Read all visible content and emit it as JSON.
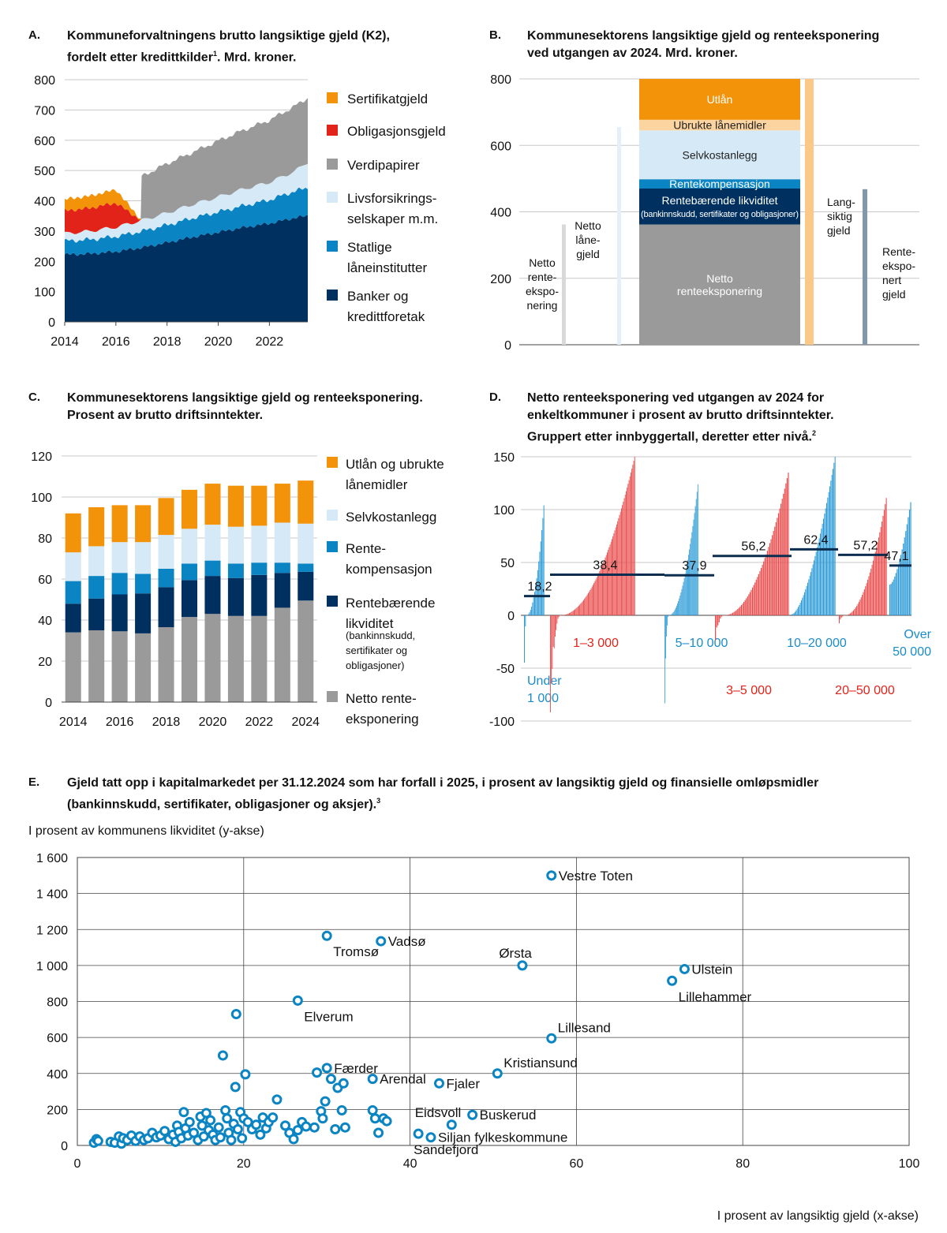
{
  "panels": {
    "a": {
      "letter": "A.",
      "title_l1": "Kommuneforvaltningens brutto langsiktige gjeld (K2),",
      "title_l2": "fordelt etter kredittkilder",
      "title_sup": "1",
      "title_end": ". Mrd. kroner."
    },
    "b": {
      "letter": "B.",
      "title_l1": "Kommunesektorens langsiktige gjeld og renteeksponering",
      "title_l2": "ved utgangen av 2024. Mrd. kroner."
    },
    "c": {
      "letter": "C.",
      "title_l1": "Kommunesektorens langsiktige gjeld og renteeksponering.",
      "title_l2": "Prosent av brutto driftsinntekter."
    },
    "d": {
      "letter": "D.",
      "title_l1": "Netto renteeksponering ved utgangen av 2024 for",
      "title_l2": "enkeltkommuner i prosent av brutto driftsinntekter.",
      "title_l3": "Gruppert etter innbyggertall, deretter etter nivå.",
      "title_sup": "2"
    },
    "e": {
      "letter": "E.",
      "title_l1": "Gjeld tatt opp i kapitalmarkedet per 31.12.2024 som har forfall i 2025, i prosent av langsiktig gjeld og finansielle omløpsmidler",
      "title_l2": "(bankinnskudd, sertifikater, obligasjoner og aksjer).",
      "title_sup": "3",
      "ylabel": "I prosent av kommunens likviditet (y-akse)",
      "xlabel": "I prosent av langsiktig gjeld (x-akse)"
    }
  },
  "colors": {
    "navy": "#00305f",
    "blue": "#0a84c3",
    "lightblue": "#d6e9f7",
    "grey": "#9a9a9a",
    "red": "#e2231a",
    "orange": "#f2930a",
    "peach": "#fcd49f",
    "redbar": "#e94b4b",
    "bluebar": "#2b9bd8"
  },
  "chart_data": [
    {
      "id": "A",
      "type": "area",
      "x_ticks": [
        "2014",
        "2016",
        "2018",
        "2020",
        "2022"
      ],
      "x_range": [
        2014,
        2023.5
      ],
      "y_ticks": [
        "0",
        "100",
        "200",
        "300",
        "400",
        "500",
        "600",
        "700",
        "800"
      ],
      "ylim": [
        0,
        800
      ],
      "years": [
        2014,
        2015,
        2016,
        2017,
        2018,
        2019,
        2020,
        2021,
        2022,
        2023,
        2023.5
      ],
      "series": [
        {
          "name": "Banker og kredittforetak",
          "color": "#00305f",
          "values": [
            222,
            225,
            232,
            245,
            262,
            280,
            296,
            312,
            325,
            344,
            350
          ]
        },
        {
          "name": "Statlige låneinstitutter",
          "color": "#0a84c3",
          "values": [
            45,
            47,
            50,
            54,
            58,
            63,
            67,
            72,
            78,
            88,
            93
          ]
        },
        {
          "name": "Livsforsikringsselskaper m.m.",
          "color": "#d6e9f7",
          "values": [
            25,
            28,
            31,
            36,
            40,
            45,
            50,
            55,
            58,
            66,
            85
          ]
        },
        {
          "name": "Verdipapirer",
          "color": "#9a9a9a",
          "values": [
            0,
            0,
            0,
            145,
            163,
            172,
            185,
            195,
            205,
            215,
            212
          ]
        },
        {
          "name": "Obligasjonsgjeld",
          "color": "#e2231a",
          "values": [
            75,
            76,
            80,
            0,
            0,
            0,
            0,
            0,
            0,
            0,
            0
          ]
        },
        {
          "name": "Sertifikatgjeld",
          "color": "#f2930a",
          "values": [
            38,
            40,
            44,
            0,
            0,
            0,
            0,
            0,
            0,
            0,
            0
          ]
        }
      ],
      "legend": [
        {
          "name": "Sertifikatgjeld",
          "color": "#f2930a"
        },
        {
          "name": "Obligasjonsgjeld",
          "color": "#e2231a"
        },
        {
          "name": "Verdipapirer",
          "color": "#9a9a9a"
        },
        {
          "name": "Livsforsikrings-",
          "name2": "selskaper m.m.",
          "color": "#d6e9f7"
        },
        {
          "name": "Statlige",
          "name2": "låneinstitutter",
          "color": "#0a84c3"
        },
        {
          "name": "Banker og",
          "name2": "kredittforetak",
          "color": "#00305f"
        }
      ]
    },
    {
      "id": "B",
      "type": "bar",
      "y_ticks": [
        "0",
        "200",
        "400",
        "600",
        "800"
      ],
      "ylim": [
        0,
        800
      ],
      "stack": [
        {
          "name": "Netto renteeksponering",
          "label": [
            "Netto",
            "renteeksponering"
          ],
          "color": "#9a9a9a",
          "from": 0,
          "to": 362
        },
        {
          "name": "Rentebærende likviditet",
          "label": [
            "Rentebærende likviditet",
            "(bankinnskudd, sertifikater og obligasjoner)"
          ],
          "color": "#00305f",
          "from": 362,
          "to": 470
        },
        {
          "name": "Rentekompensasjon",
          "label": [
            "Rentekompensasjon"
          ],
          "color": "#0a84c3",
          "from": 470,
          "to": 498
        },
        {
          "name": "Selvkostanlegg",
          "label": [
            "Selvkostanlegg"
          ],
          "color": "#d6e9f7",
          "from": 498,
          "to": 645
        },
        {
          "name": "Ubrukte lånemidler",
          "label": [
            "Ubrukte lånemidler"
          ],
          "color": "#fcd49f",
          "from": 645,
          "to": 677
        },
        {
          "name": "Utlån",
          "label": [
            "Utlån"
          ],
          "color": "#f2930a",
          "from": 677,
          "to": 800
        }
      ],
      "thin_bars": [
        {
          "name": "Netto renteeksponering",
          "label": [
            "Netto",
            "rente-",
            "ekspo-",
            "nering"
          ],
          "color": "#d9d9d9",
          "value": 362
        },
        {
          "name": "Netto lånegjeld",
          "label": [
            "Netto",
            "låne-",
            "gjeld"
          ],
          "color": "#e3f0fa",
          "value": 655
        },
        {
          "name": "Utlån og ubrukte lånemidler",
          "label": [],
          "color": "#fcc887",
          "value": 800
        },
        {
          "name": "Langsiktig gjeld",
          "label": [
            "Lang-",
            "siktig",
            "gjeld"
          ],
          "color": "#ffffff",
          "value": 0
        },
        {
          "name": "Renteeksponert gjeld",
          "label": [
            "Rente-",
            "ekspo-",
            "nert",
            "gjeld"
          ],
          "color": "#7f98ad",
          "value": 468
        }
      ]
    },
    {
      "id": "C",
      "type": "bar",
      "categories": [
        "2014",
        "2015",
        "2016",
        "2017",
        "2018",
        "2019",
        "2020",
        "2021",
        "2022",
        "2023",
        "2024"
      ],
      "x_ticks": [
        "2014",
        "2016",
        "2018",
        "2020",
        "2022",
        "2024"
      ],
      "y_ticks": [
        "0",
        "20",
        "40",
        "60",
        "80",
        "100",
        "120"
      ],
      "ylim": [
        0,
        120
      ],
      "series": [
        {
          "name": "Netto renteeksponering",
          "color": "#9a9a9a",
          "values": [
            34,
            35,
            34.5,
            33.5,
            36.5,
            41.5,
            43,
            42,
            42,
            46,
            49.5
          ]
        },
        {
          "name": "Rentebærende likviditet",
          "color": "#00305f",
          "values": [
            14,
            15.5,
            18,
            19.5,
            19.5,
            18,
            18.5,
            18.5,
            20,
            17,
            14
          ]
        },
        {
          "name": "Rentekompensasjon",
          "color": "#0a84c3",
          "values": [
            11,
            11,
            10.5,
            9.5,
            9,
            8,
            7.5,
            7,
            6,
            5,
            4
          ]
        },
        {
          "name": "Selvkostanlegg",
          "color": "#d6e9f7",
          "values": [
            14,
            14.5,
            15,
            15.5,
            16.5,
            17,
            17.5,
            18,
            18,
            19.5,
            19.5
          ]
        },
        {
          "name": "Utlån og ubrukte lånemidler",
          "color": "#f2930a",
          "values": [
            19,
            19,
            18,
            18,
            18,
            19,
            20,
            20,
            19.5,
            19,
            21
          ]
        }
      ],
      "legend": [
        {
          "lines": [
            "Utlån og ubrukte",
            "lånemidler"
          ],
          "small": [],
          "color": "#f2930a"
        },
        {
          "lines": [
            "Selvkostanlegg"
          ],
          "small": [],
          "color": "#d6e9f7"
        },
        {
          "lines": [
            "Rente-",
            "kompensasjon"
          ],
          "small": [],
          "color": "#0a84c3"
        },
        {
          "lines": [
            "Rentebærende",
            "likviditet"
          ],
          "small": [
            "(bankinnskudd,",
            "sertifikater og",
            "obligasjoner)"
          ],
          "color": "#00305f"
        },
        {
          "lines": [
            "Netto rente-",
            "eksponering"
          ],
          "small": [],
          "color": "#9a9a9a"
        }
      ]
    },
    {
      "id": "D",
      "type": "bar",
      "y_ticks": [
        "-100",
        "-50",
        "0",
        "50",
        "100",
        "150"
      ],
      "ylim": [
        -100,
        150
      ],
      "groups": [
        {
          "name": "Under 1 000",
          "label": [
            "Under",
            "1 000"
          ],
          "color": "#2b9bd8",
          "count": 20,
          "min": -52,
          "max": 104,
          "mean": 18.2,
          "mean_label": "18,2"
        },
        {
          "name": "1–3 000",
          "label": [
            "1–3 000"
          ],
          "color": "#e94b4b",
          "count": 90,
          "min": -92,
          "max": 150,
          "mean": 38.4,
          "mean_label": "38,4"
        },
        {
          "name": "5–10 000",
          "label": [
            "5–10 000"
          ],
          "color": "#2b9bd8",
          "count": 40,
          "min": -100,
          "max": 124,
          "mean": 37.9,
          "mean_label": "37,9"
        },
        {
          "name": "3–5 000",
          "label": [
            "3–5 000"
          ],
          "color": "#e94b4b",
          "count": 60,
          "min": -25,
          "max": 135,
          "mean": 56.2,
          "mean_label": "56,2"
        },
        {
          "name": "10–20 000",
          "label": [
            "10–20 000"
          ],
          "color": "#2b9bd8",
          "count": 42,
          "min": 1,
          "max": 150,
          "mean": 62.4,
          "mean_label": "62,4"
        },
        {
          "name": "20–50 000",
          "label": [
            "20–50 000"
          ],
          "color": "#e94b4b",
          "count": 44,
          "min": -8,
          "max": 111,
          "mean": 57.2,
          "mean_label": "57,2"
        },
        {
          "name": "Over 50 000",
          "label": [
            "Over",
            "50 000"
          ],
          "color": "#2b9bd8",
          "count": 18,
          "min": 29,
          "max": 107,
          "mean": 47.1,
          "mean_label": "47,1"
        }
      ]
    },
    {
      "id": "E",
      "type": "scatter",
      "x_ticks": [
        "0",
        "20",
        "40",
        "60",
        "80",
        "100"
      ],
      "y_ticks": [
        "0",
        "200",
        "400",
        "600",
        "800",
        "1 000",
        "1 200",
        "1 400",
        "1 600"
      ],
      "xlim": [
        0,
        100
      ],
      "ylim": [
        0,
        1600
      ],
      "labeled_points": [
        {
          "label": "Vestre Toten",
          "x": 57,
          "y": 1500,
          "lpos": "r"
        },
        {
          "label": "Tromsø",
          "x": 30,
          "y": 1165,
          "lpos": "br"
        },
        {
          "label": "Vadsø",
          "x": 36.5,
          "y": 1135,
          "lpos": "r"
        },
        {
          "label": "Ørsta",
          "x": 53.5,
          "y": 1000,
          "lpos": "tl"
        },
        {
          "label": "Ulstein",
          "x": 73,
          "y": 980,
          "lpos": "r"
        },
        {
          "label": "Lillehammer",
          "x": 71.5,
          "y": 915,
          "lpos": "br"
        },
        {
          "label": "Elverum",
          "x": 26.5,
          "y": 805,
          "lpos": "br"
        },
        {
          "label": "Lillesand",
          "x": 57,
          "y": 595,
          "lpos": "tr"
        },
        {
          "label": "Færder",
          "x": 30,
          "y": 430,
          "lpos": "r"
        },
        {
          "label": "Kristiansund",
          "x": 50.5,
          "y": 400,
          "lpos": "tr"
        },
        {
          "label": "Arendal",
          "x": 35.5,
          "y": 370,
          "lpos": "r"
        },
        {
          "label": "Fjaler",
          "x": 43.5,
          "y": 345,
          "lpos": "r"
        },
        {
          "label": "Eidsvoll",
          "x": 45,
          "y": 115,
          "lpos": "tl"
        },
        {
          "label": "Buskerud",
          "x": 47.5,
          "y": 170,
          "lpos": "r"
        },
        {
          "label": "Siljan fylkeskommune",
          "x": 42.5,
          "y": 45,
          "lpos": "r"
        },
        {
          "label": "Sandefjord",
          "x": 41,
          "y": 65,
          "lpos": "b"
        }
      ],
      "points": [
        [
          2,
          15
        ],
        [
          2.3,
          35
        ],
        [
          2.5,
          25
        ],
        [
          4,
          20
        ],
        [
          4.5,
          15
        ],
        [
          5,
          50
        ],
        [
          5.3,
          10
        ],
        [
          5.5,
          40
        ],
        [
          6,
          30
        ],
        [
          6.5,
          55
        ],
        [
          7,
          25
        ],
        [
          7.5,
          50
        ],
        [
          8,
          30
        ],
        [
          8.5,
          40
        ],
        [
          9,
          70
        ],
        [
          9.5,
          45
        ],
        [
          10,
          55
        ],
        [
          10.5,
          80
        ],
        [
          11,
          35
        ],
        [
          11.5,
          60
        ],
        [
          11.8,
          20
        ],
        [
          12,
          110
        ],
        [
          12.2,
          75
        ],
        [
          12.5,
          40
        ],
        [
          12.8,
          185
        ],
        [
          13,
          95
        ],
        [
          13.3,
          55
        ],
        [
          13.5,
          130
        ],
        [
          14,
          70
        ],
        [
          14.5,
          30
        ],
        [
          14.8,
          160
        ],
        [
          15,
          110
        ],
        [
          15.2,
          50
        ],
        [
          15.5,
          180
        ],
        [
          15.8,
          85
        ],
        [
          16,
          140
        ],
        [
          16.3,
          60
        ],
        [
          16.6,
          30
        ],
        [
          17,
          100
        ],
        [
          17.2,
          45
        ],
        [
          17.5,
          500
        ],
        [
          17.8,
          195
        ],
        [
          18,
          150
        ],
        [
          18.2,
          70
        ],
        [
          18.5,
          30
        ],
        [
          18.8,
          120
        ],
        [
          19,
          325
        ],
        [
          19.1,
          730
        ],
        [
          19.3,
          90
        ],
        [
          19.6,
          185
        ],
        [
          19.8,
          40
        ],
        [
          20,
          150
        ],
        [
          20.2,
          395
        ],
        [
          20.5,
          130
        ],
        [
          21,
          90
        ],
        [
          21.5,
          115
        ],
        [
          22,
          60
        ],
        [
          22.3,
          155
        ],
        [
          22.7,
          95
        ],
        [
          23,
          130
        ],
        [
          23.5,
          155
        ],
        [
          24,
          255
        ],
        [
          25,
          110
        ],
        [
          25.5,
          70
        ],
        [
          26,
          35
        ],
        [
          26.5,
          85
        ],
        [
          27,
          130
        ],
        [
          27.5,
          105
        ],
        [
          28.5,
          100
        ],
        [
          28.8,
          405
        ],
        [
          29.3,
          190
        ],
        [
          29.5,
          150
        ],
        [
          29.8,
          245
        ],
        [
          30.5,
          370
        ],
        [
          31,
          90
        ],
        [
          31.3,
          320
        ],
        [
          31.8,
          195
        ],
        [
          32,
          345
        ],
        [
          32.2,
          100
        ],
        [
          35.5,
          195
        ],
        [
          35.8,
          150
        ],
        [
          36.2,
          70
        ],
        [
          36.8,
          150
        ],
        [
          37.2,
          135
        ]
      ]
    }
  ]
}
